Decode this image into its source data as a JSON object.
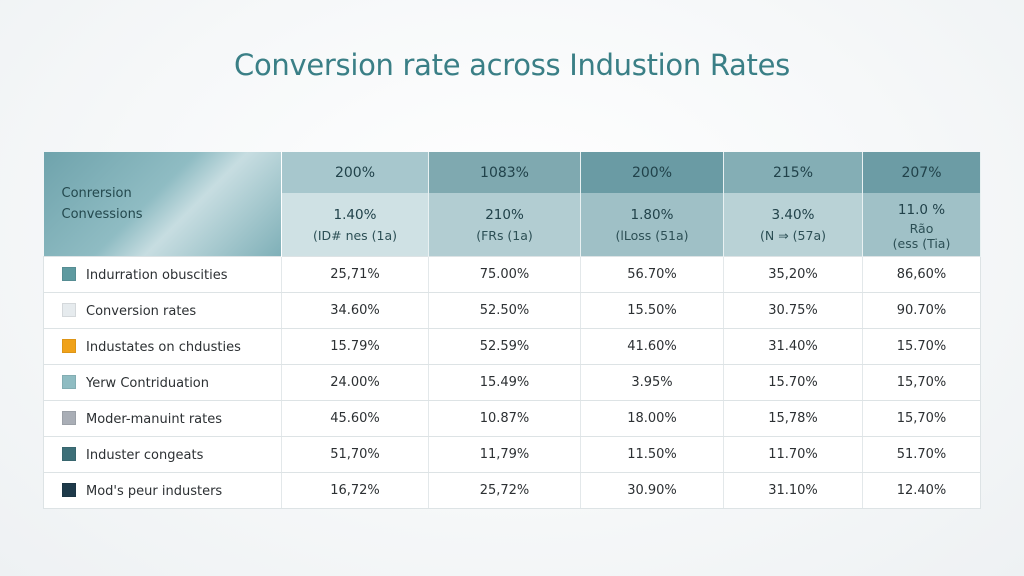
{
  "title": "Conversion rate across Industion Rates",
  "chart_data": {
    "type": "table",
    "title": "Conversion rate across Industion Rates",
    "header_label": [
      "Conrersion",
      "Convessions"
    ],
    "columns": [
      {
        "top": "200%",
        "value": "1.40%",
        "sub": "(ID# nes (1a)"
      },
      {
        "top": "1083%",
        "value": "210%",
        "sub": "(FRs (1a)"
      },
      {
        "top": "200%",
        "value": "1.80%",
        "sub": "(lLoss (51a)"
      },
      {
        "top": "215%",
        "value": "3.40%",
        "sub": "(N ⇒ (57a)"
      },
      {
        "top": "207%",
        "value": "11.0 %",
        "sub": "Rão\n(ess (Tia)"
      }
    ],
    "rows": [
      {
        "label": "Indurration obuscities",
        "color": "#5e9aa0",
        "values": [
          "25,71%",
          "75.00%",
          "56.70%",
          "35,20%",
          "86,60%"
        ]
      },
      {
        "label": "Conversion rates",
        "color": "#e6ebee",
        "values": [
          "34.60%",
          "52.50%",
          "15.50%",
          "30.75%",
          "90.70%"
        ]
      },
      {
        "label": "Industates on chdusties",
        "color": "#f0a21a",
        "values": [
          "15.79%",
          "52.59%",
          "41.60%",
          "31.40%",
          "15.70%"
        ]
      },
      {
        "label": "Yerw Contriduation",
        "color": "#8fbcc2",
        "values": [
          "24.00%",
          "15.49%",
          "3.95%",
          "15.70%",
          "15,70%"
        ]
      },
      {
        "label": "Moder-manuint rates",
        "color": "#a9aeb6",
        "values": [
          "45.60%",
          "10.87%",
          "18.00%",
          "15,78%",
          "15,70%"
        ]
      },
      {
        "label": "Induster congeats",
        "color": "#3d6f78",
        "values": [
          "51,70%",
          "11,79%",
          "11.50%",
          "11.70%",
          "51.70%"
        ]
      },
      {
        "label": "Mod's pеur industers",
        "color": "#1e3a4a",
        "values": [
          "16,72%",
          "25,72%",
          "30.90%",
          "31.10%",
          "12.40%"
        ]
      }
    ]
  }
}
